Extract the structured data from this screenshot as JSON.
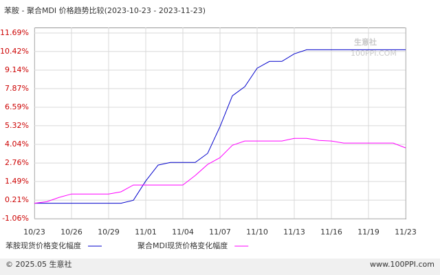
{
  "chart_data": {
    "type": "line",
    "title": "苯胺 - 聚合MDI 价格趋势比较(2023-10-23 - 2023-11-23)",
    "categories": [
      "10/23",
      null,
      null,
      "10/26",
      null,
      null,
      "10/29",
      null,
      null,
      "11/01",
      null,
      null,
      "11/04",
      null,
      null,
      "11/07",
      null,
      null,
      "11/10",
      null,
      null,
      "11/13",
      null,
      null,
      "11/16",
      null,
      null,
      "11/19",
      null,
      null,
      "11/23"
    ],
    "series": [
      {
        "name": "苯胺现货价格变化幅度",
        "color": "#0000cc",
        "values": [
          0,
          0,
          0,
          0,
          0,
          0,
          0,
          0,
          0.2,
          1.53,
          2.62,
          2.8,
          2.8,
          2.8,
          3.42,
          5.26,
          7.38,
          8.0,
          9.27,
          9.74,
          9.74,
          10.26,
          10.54,
          10.54,
          10.54,
          10.54,
          10.54,
          10.54,
          10.54,
          10.54,
          10.54
        ]
      },
      {
        "name": "聚合MDI现货价格变化幅度",
        "color": "#ff00ff",
        "values": [
          0,
          0.1,
          0.4,
          0.63,
          0.63,
          0.63,
          0.63,
          0.78,
          1.25,
          1.25,
          1.25,
          1.25,
          1.25,
          1.9,
          2.66,
          3.13,
          3.98,
          4.27,
          4.27,
          4.27,
          4.27,
          4.45,
          4.45,
          4.31,
          4.27,
          4.13,
          4.13,
          4.13,
          4.13,
          4.13,
          3.8
        ]
      }
    ],
    "ylim": [
      -1.06,
      11.69
    ],
    "yticks": [
      {
        "value": -1.06,
        "label": "-1.06%"
      },
      {
        "value": 0.21,
        "label": "0.21%"
      },
      {
        "value": 1.49,
        "label": "1.49%"
      },
      {
        "value": 2.76,
        "label": "2.76%"
      },
      {
        "value": 4.04,
        "label": "4.04%"
      },
      {
        "value": 5.32,
        "label": "5.32%"
      },
      {
        "value": 6.59,
        "label": "6.59%"
      },
      {
        "value": 7.87,
        "label": "7.87%"
      },
      {
        "value": 9.14,
        "label": "9.14%"
      },
      {
        "value": 10.42,
        "label": "10.42%"
      },
      {
        "value": 11.69,
        "label": "11.69%"
      }
    ],
    "grid": true,
    "watermark": [
      "生意社",
      "100PPI.COM"
    ],
    "footer_left": "© 2025.05 生意社",
    "footer_right": "www.100PPI.com"
  }
}
